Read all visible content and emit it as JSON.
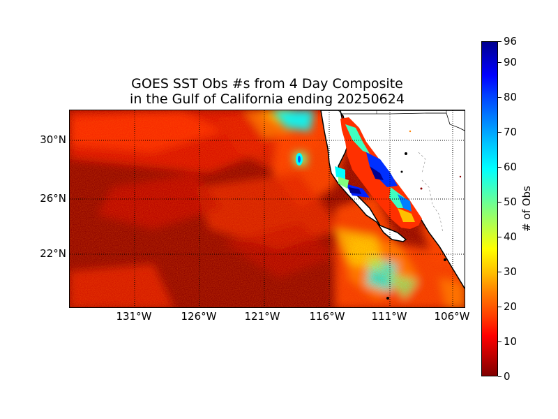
{
  "title": {
    "line1": "GOES SST Obs #s from 4 Day Composite",
    "line2": "in the Gulf of California ending 20250624"
  },
  "map": {
    "lat_labels": [
      "30°N",
      "26°N",
      "22°N"
    ],
    "lon_labels": [
      "131°W",
      "126°W",
      "121°W",
      "116°W",
      "111°W",
      "106°W"
    ],
    "lat_values": [
      30,
      26,
      22
    ],
    "lon_values": [
      -131,
      -126,
      -121,
      -116,
      -111,
      -106
    ],
    "lat_range": [
      18.1,
      32.2
    ],
    "lon_range": [
      -136,
      -105.5
    ]
  },
  "colorbar": {
    "label": "# of Obs",
    "ticks": [
      "96",
      "90",
      "80",
      "70",
      "60",
      "50",
      "40",
      "30",
      "20",
      "10",
      "0"
    ],
    "tick_values": [
      96,
      90,
      80,
      70,
      60,
      50,
      40,
      30,
      20,
      10,
      0
    ],
    "range": [
      0,
      96
    ],
    "colormap": "jet"
  },
  "colors": {
    "ocean_low": "#8b0000",
    "land": "#ffffff",
    "grid": "#000000"
  }
}
